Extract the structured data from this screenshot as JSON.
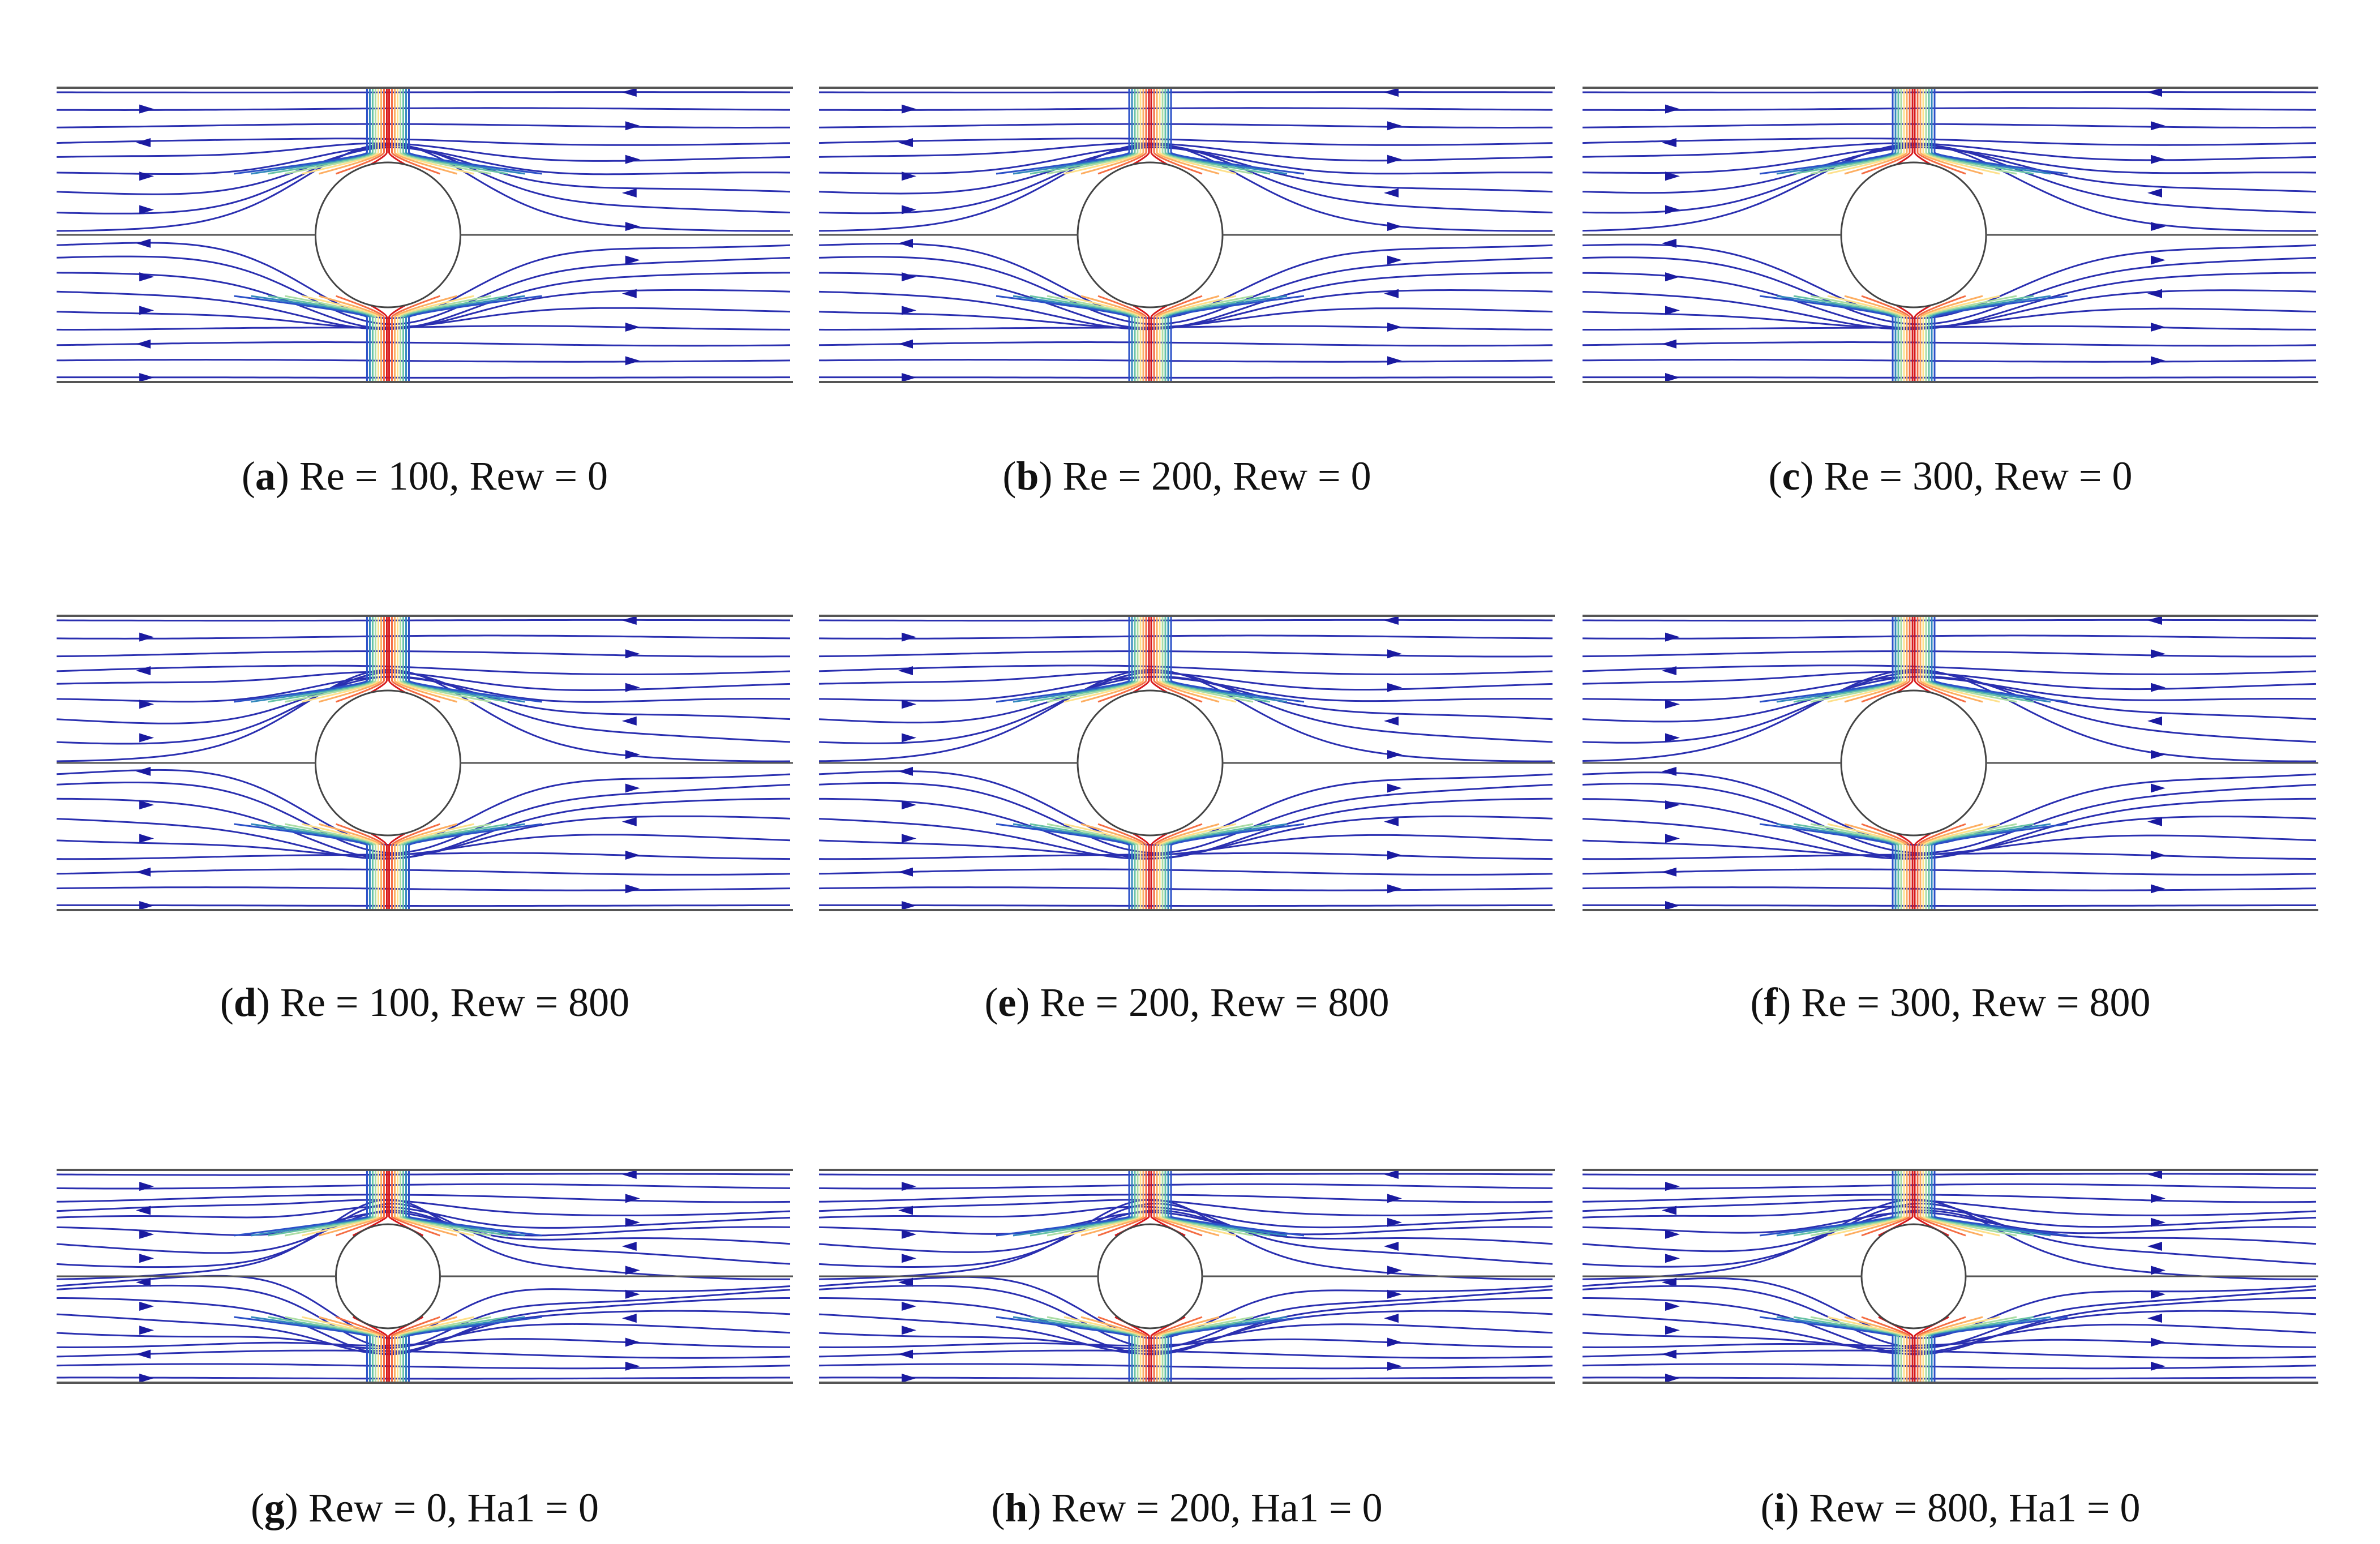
{
  "panels": [
    {
      "parts": [
        "(",
        "a",
        ") Re = 100, Rew = 0"
      ]
    },
    {
      "parts": [
        "(",
        "b",
        ") Re = 200, Rew = 0"
      ]
    },
    {
      "parts": [
        "(",
        "c",
        ") Re = 300, Rew = 0"
      ]
    },
    {
      "parts": [
        "(",
        "d",
        ") Re = 100, Rew = 800"
      ]
    },
    {
      "parts": [
        "(",
        "e",
        ") Re = 200, Rew = 800"
      ]
    },
    {
      "parts": [
        "(",
        "f",
        ") Re = 300, Rew = 800"
      ]
    },
    {
      "parts": [
        "(",
        "g",
        ") Rew = 0, Ha1 = 0"
      ]
    },
    {
      "parts": [
        "(",
        "h",
        ") Rew = 200, Ha1 = 0"
      ]
    },
    {
      "parts": [
        "(",
        "i",
        ") Rew = 800, Ha1 = 0"
      ]
    }
  ]
}
